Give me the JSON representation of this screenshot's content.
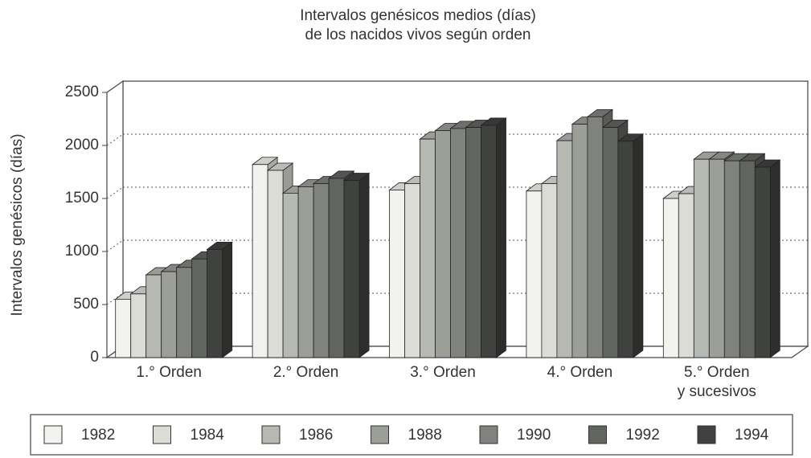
{
  "chart_data": {
    "type": "bar3d",
    "title": "Intervalos genésicos medios (días)\nde los nacidos vivos según orden",
    "y_label": "Intervalos genésicos (días)",
    "categories": [
      "1.° Orden",
      "2.° Orden",
      "3.° Orden",
      "4.° Orden",
      "5.° Orden\ny sucesivos"
    ],
    "series": [
      {
        "name": "1982",
        "color": "#f2f2ee",
        "values": [
          550,
          1820,
          1580,
          1570,
          1500
        ]
      },
      {
        "name": "1984",
        "color": "#dcdcd7",
        "values": [
          600,
          1765,
          1640,
          1640,
          1545
        ]
      },
      {
        "name": "1986",
        "color": "#b6b8b2",
        "values": [
          780,
          1550,
          2060,
          2045,
          1870
        ]
      },
      {
        "name": "1988",
        "color": "#9c9e98",
        "values": [
          810,
          1610,
          2140,
          2200,
          1870
        ]
      },
      {
        "name": "1990",
        "color": "#80827d",
        "values": [
          850,
          1640,
          2160,
          2270,
          1855
        ]
      },
      {
        "name": "1992",
        "color": "#626460",
        "values": [
          930,
          1690,
          2170,
          2170,
          1855
        ]
      },
      {
        "name": "1994",
        "color": "#40423f",
        "values": [
          1020,
          1670,
          2190,
          2040,
          1795
        ]
      }
    ],
    "ylim": [
      0,
      2500
    ],
    "yticks": [
      0,
      500,
      1000,
      1500,
      2000,
      2500
    ],
    "grid": true
  }
}
